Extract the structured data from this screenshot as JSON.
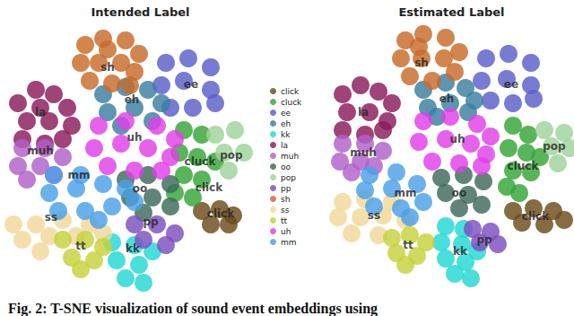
{
  "caption": "Fig. 2: T-SNE visualization of sound event embeddings using",
  "chart_data": [
    {
      "type": "scatter",
      "title": "Intended Label",
      "xlim": [
        0,
        283
      ],
      "ylim": [
        0,
        300
      ],
      "tick_labels": false,
      "legend": "right",
      "series": [
        {
          "name": "click",
          "color": "#6b4a1a",
          "x": [
            215,
            235,
            250,
            225,
            245
          ],
          "y": [
            85,
            87,
            80,
            70,
            70
          ]
        },
        {
          "name": "cluck",
          "color": "#35a535",
          "x": [
            195,
            215,
            190,
            210,
            230,
            195,
            215,
            205,
            185
          ],
          "y": [
            175,
            170,
            150,
            145,
            140,
            125,
            120,
            100,
            105
          ]
        },
        {
          "name": "ee",
          "color": "#5a5ec8",
          "x": [
            175,
            200,
            225,
            170,
            195,
            225,
            180,
            205,
            230
          ],
          "y": [
            250,
            255,
            245,
            225,
            230,
            220,
            200,
            200,
            205
          ]
        },
        {
          "name": "eh",
          "color": "#3a7fa0",
          "x": [
            105,
            130,
            155,
            170,
            110,
            140,
            160,
            125
          ],
          "y": [
            215,
            223,
            220,
            205,
            195,
            200,
            185,
            180
          ]
        },
        {
          "name": "kk",
          "color": "#22d8d2",
          "x": [
            115,
            140,
            160,
            120,
            145,
            130,
            150
          ],
          "y": [
            50,
            47,
            40,
            30,
            25,
            10,
            5
          ]
        },
        {
          "name": "la",
          "color": "#8b1a5c",
          "x": [
            10,
            30,
            50,
            65,
            20,
            45,
            70,
            15,
            40,
            60,
            35
          ],
          "y": [
            205,
            220,
            215,
            200,
            185,
            185,
            180,
            165,
            160,
            165,
            200
          ]
        },
        {
          "name": "muh",
          "color": "#b060c8",
          "x": [
            15,
            40,
            60,
            10,
            35,
            20,
            50
          ],
          "y": [
            155,
            155,
            145,
            135,
            135,
            120,
            125
          ]
        },
        {
          "name": "oo",
          "color": "#3d6a5a",
          "x": [
            130,
            155,
            180,
            135,
            160,
            180,
            150
          ],
          "y": [
            120,
            125,
            115,
            100,
            100,
            90,
            83
          ]
        },
        {
          "name": "pop",
          "color": "#9fd39a",
          "x": [
            230,
            252,
            240,
            262,
            245
          ],
          "y": [
            170,
            175,
            150,
            150,
            130
          ]
        },
        {
          "name": "pp",
          "color": "#7d4ec0",
          "x": [
            140,
            165,
            185,
            150,
            175
          ],
          "y": [
            70,
            70,
            60,
            53,
            47
          ]
        },
        {
          "name": "sh",
          "color": "#c86a28",
          "x": [
            85,
            105,
            130,
            145,
            80,
            100,
            125,
            140,
            90,
            115,
            135,
            110
          ],
          "y": [
            270,
            277,
            275,
            260,
            250,
            250,
            250,
            240,
            230,
            227,
            225,
            265
          ]
        },
        {
          "name": "ss",
          "color": "#f2d89a",
          "x": [
            5,
            30,
            60,
            90,
            15,
            45,
            75,
            105,
            35
          ],
          "y": [
            70,
            70,
            75,
            70,
            53,
            57,
            57,
            60,
            40
          ]
        },
        {
          "name": "tt",
          "color": "#c5d23a",
          "x": [
            60,
            85,
            105,
            70,
            95,
            80
          ],
          "y": [
            53,
            53,
            45,
            33,
            30,
            20
          ]
        },
        {
          "name": "uh",
          "color": "#e040e8",
          "x": [
            100,
            130,
            165,
            185,
            95,
            125,
            155,
            180,
            110,
            140,
            170
          ],
          "y": [
            180,
            185,
            180,
            165,
            155,
            160,
            155,
            145,
            135,
            130,
            130
          ]
        },
        {
          "name": "mm",
          "color": "#4aa0e8",
          "x": [
            50,
            80,
            45,
            75,
            105,
            130,
            55,
            85,
            115,
            140,
            100
          ],
          "y": [
            125,
            125,
            105,
            110,
            115,
            110,
            85,
            85,
            90,
            95,
            75
          ]
        }
      ],
      "annotations": [
        {
          "text": "sh",
          "x": 110,
          "y": 245
        },
        {
          "text": "la",
          "x": 35,
          "y": 195
        },
        {
          "text": "eh",
          "x": 137,
          "y": 209
        },
        {
          "text": "ee",
          "x": 203,
          "y": 226
        },
        {
          "text": "muh",
          "x": 35,
          "y": 152
        },
        {
          "text": "uh",
          "x": 140,
          "y": 167
        },
        {
          "text": "mm",
          "x": 78,
          "y": 125
        },
        {
          "text": "oo",
          "x": 146,
          "y": 110
        },
        {
          "text": "cluck",
          "x": 213,
          "y": 140
        },
        {
          "text": "pop",
          "x": 248,
          "y": 147
        },
        {
          "text": "click",
          "x": 223,
          "y": 111
        },
        {
          "text": "click",
          "x": 236,
          "y": 82
        },
        {
          "text": "ss",
          "x": 47,
          "y": 78
        },
        {
          "text": "tt",
          "x": 80,
          "y": 46
        },
        {
          "text": "pp",
          "x": 158,
          "y": 73
        },
        {
          "text": "kk",
          "x": 138,
          "y": 43
        }
      ]
    },
    {
      "type": "scatter",
      "title": "Estimated Label",
      "xlim": [
        0,
        283
      ],
      "ylim": [
        0,
        300
      ],
      "tick_labels": false,
      "series": [
        {
          "name": "click",
          "color": "#6b4a1a",
          "x": [
            215,
            238,
            260,
            225,
            250,
            272
          ],
          "y": [
            85,
            88,
            85,
            72,
            70,
            75
          ]
        },
        {
          "name": "cluck",
          "color": "#35a535",
          "x": [
            215,
            232,
            210,
            230,
            245,
            215,
            235,
            222,
            208
          ],
          "y": [
            180,
            170,
            155,
            150,
            145,
            130,
            128,
            105,
            112
          ]
        },
        {
          "name": "ee",
          "color": "#5a5ec8",
          "x": [
            185,
            210,
            235,
            180,
            208,
            235,
            190,
            215,
            238
          ],
          "y": [
            255,
            260,
            250,
            230,
            232,
            225,
            208,
            205,
            210
          ]
        },
        {
          "name": "eh",
          "color": "#3a7fa0",
          "x": [
            115,
            140,
            162,
            172,
            120,
            145,
            165,
            130
          ],
          "y": [
            220,
            228,
            222,
            208,
            200,
            205,
            195,
            190
          ]
        },
        {
          "name": "kk",
          "color": "#22d8d2",
          "x": [
            140,
            160,
            135,
            158,
            175,
            140,
            162,
            150,
            168
          ],
          "y": [
            68,
            65,
            50,
            48,
            40,
            32,
            28,
            15,
            10
          ]
        },
        {
          "name": "la",
          "color": "#8b1a5c",
          "x": [
            25,
            45,
            65,
            80,
            30,
            55,
            75,
            25,
            50,
            70
          ],
          "y": [
            215,
            225,
            218,
            205,
            195,
            195,
            185,
            175,
            170,
            175
          ]
        },
        {
          "name": "muh",
          "color": "#b060c8",
          "x": [
            25,
            50,
            70,
            22,
            45,
            35,
            60
          ],
          "y": [
            160,
            160,
            152,
            140,
            140,
            128,
            135
          ]
        },
        {
          "name": "oo",
          "color": "#3d6a5a",
          "x": [
            135,
            160,
            182,
            140,
            165,
            180,
            155
          ],
          "y": [
            122,
            125,
            118,
            105,
            103,
            92,
            88
          ]
        },
        {
          "name": "pop",
          "color": "#9fd39a",
          "x": [
            250,
            272,
            258,
            278,
            265
          ],
          "y": [
            175,
            172,
            157,
            155,
            138
          ]
        },
        {
          "name": "pp",
          "color": "#7d4ec0",
          "x": [
            170,
            190,
            178,
            198
          ],
          "y": [
            65,
            62,
            50,
            48
          ]
        },
        {
          "name": "sh",
          "color": "#c86a28",
          "x": [
            95,
            115,
            140,
            155,
            90,
            113,
            138,
            150,
            100,
            125,
            110
          ],
          "y": [
            275,
            282,
            278,
            262,
            255,
            255,
            255,
            240,
            235,
            230,
            268
          ]
        },
        {
          "name": "ss",
          "color": "#f2d89a",
          "x": [
            25,
            50,
            80,
            20,
            45,
            70,
            95,
            35,
            65
          ],
          "y": [
            95,
            98,
            95,
            78,
            78,
            80,
            75,
            60,
            58
          ]
        },
        {
          "name": "tt",
          "color": "#c5d23a",
          "x": [
            80,
            100,
            118,
            85,
            108,
            95
          ],
          "y": [
            55,
            58,
            50,
            38,
            35,
            25
          ]
        },
        {
          "name": "uh",
          "color": "#e040e8",
          "x": [
            115,
            145,
            175,
            190,
            110,
            140,
            168,
            185,
            125,
            155,
            180
          ],
          "y": [
            185,
            190,
            182,
            168,
            162,
            165,
            160,
            148,
            140,
            138,
            135
          ]
        },
        {
          "name": "mm",
          "color": "#4aa0e8",
          "x": [
            55,
            85,
            50,
            80,
            108,
            60,
            90,
            115,
            100
          ],
          "y": [
            125,
            128,
            108,
            110,
            115,
            90,
            88,
            95,
            78
          ]
        }
      ],
      "annotations": [
        {
          "text": "sh",
          "x": 113,
          "y": 250
        },
        {
          "text": "la",
          "x": 48,
          "y": 195
        },
        {
          "text": "eh",
          "x": 141,
          "y": 210
        },
        {
          "text": "ee",
          "x": 213,
          "y": 226
        },
        {
          "text": "muh",
          "x": 48,
          "y": 150
        },
        {
          "text": "uh",
          "x": 153,
          "y": 165
        },
        {
          "text": "mm",
          "x": 95,
          "y": 105
        },
        {
          "text": "oo",
          "x": 155,
          "y": 105
        },
        {
          "text": "cluck",
          "x": 226,
          "y": 135
        },
        {
          "text": "pop",
          "x": 261,
          "y": 157
        },
        {
          "text": "click",
          "x": 240,
          "y": 79
        },
        {
          "text": "ss",
          "x": 60,
          "y": 80
        },
        {
          "text": "tt",
          "x": 98,
          "y": 47
        },
        {
          "text": "pp",
          "x": 183,
          "y": 53
        },
        {
          "text": "kk",
          "x": 156,
          "y": 40
        }
      ]
    }
  ]
}
